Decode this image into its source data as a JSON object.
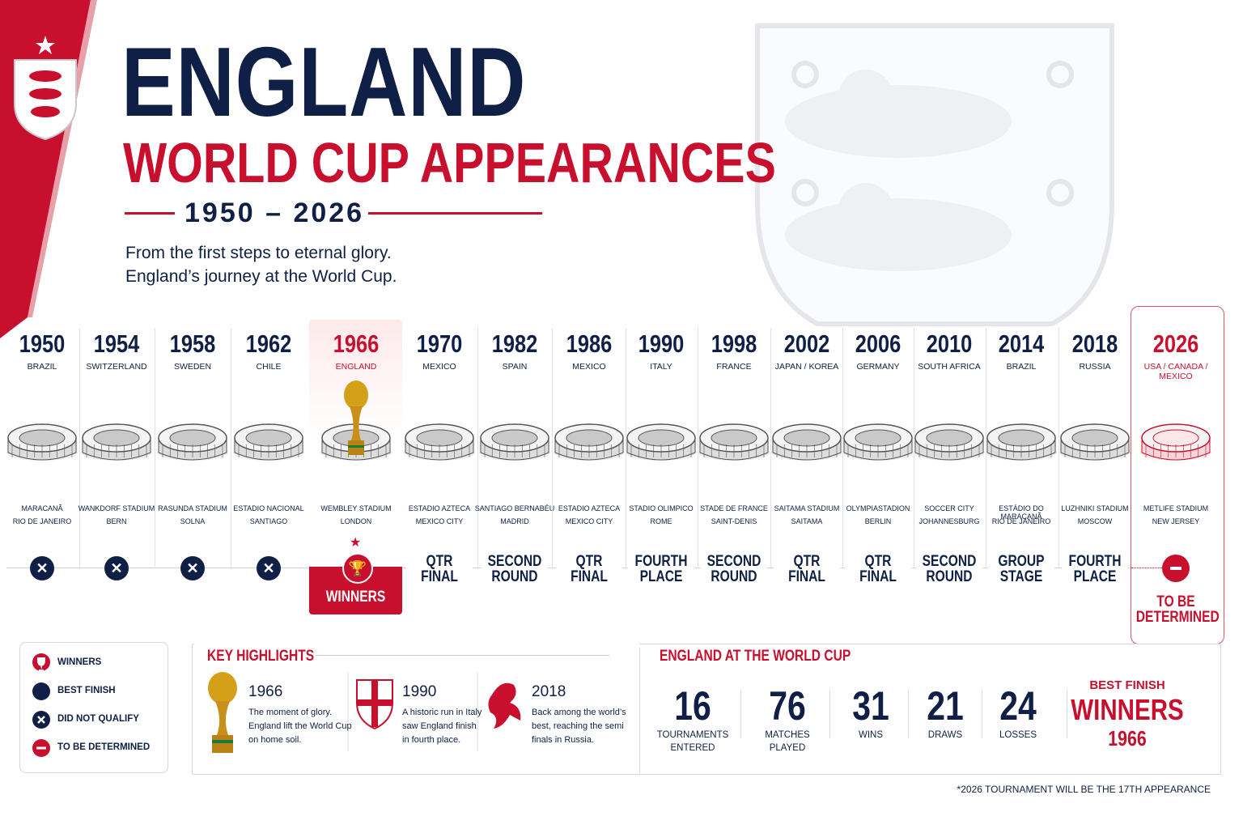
{
  "header": {
    "title": "ENGLAND",
    "subtitle": "WORLD CUP APPEARANCES",
    "years": "1950 – 2026",
    "intro": [
      "From the first steps to eternal glory.",
      "England’s journey at the World Cup."
    ]
  },
  "timeline": [
    {
      "year": "1950",
      "host": "BRAZIL",
      "stadium": "MARACANÃ",
      "city": "RIO DE JANEIRO",
      "status": "did-not-qualify"
    },
    {
      "year": "1954",
      "host": "SWITZERLAND",
      "stadium": "WANKDORF STADIUM",
      "city": "BERN",
      "status": "did-not-qualify"
    },
    {
      "year": "1958",
      "host": "SWEDEN",
      "stadium": "RASUNDA STADIUM",
      "city": "SOLNA",
      "status": "did-not-qualify"
    },
    {
      "year": "1962",
      "host": "CHILE",
      "stadium": "ESTADIO NACIONAL",
      "city": "SANTIAGO",
      "status": "did-not-qualify"
    },
    {
      "year": "1966",
      "host": "ENGLAND",
      "stadium": "WEMBLEY STADIUM",
      "city": "LONDON",
      "status": "winners",
      "result": [
        "WINNERS"
      ]
    },
    {
      "year": "1970",
      "host": "MEXICO",
      "stadium": "ESTADIO AZTECA",
      "city": "MEXICO CITY",
      "status": "best",
      "result": [
        "QTR",
        "FINAL"
      ]
    },
    {
      "year": "1982",
      "host": "SPAIN",
      "stadium": "SANTIAGO BERNABÉU",
      "city": "MADRID",
      "status": "best",
      "result": [
        "SECOND",
        "ROUND"
      ]
    },
    {
      "year": "1986",
      "host": "MEXICO",
      "stadium": "ESTADIO AZTECA",
      "city": "MEXICO CITY",
      "status": "best",
      "result": [
        "QTR",
        "FINAL"
      ]
    },
    {
      "year": "1990",
      "host": "ITALY",
      "stadium": "STADIO OLIMPICO",
      "city": "ROME",
      "status": "best",
      "result": [
        "FOURTH",
        "PLACE"
      ]
    },
    {
      "year": "1998",
      "host": "FRANCE",
      "stadium": "STADE DE FRANCE",
      "city": "SAINT-DENIS",
      "status": "best",
      "result": [
        "SECOND",
        "ROUND"
      ]
    },
    {
      "year": "2002",
      "host": "JAPAN / KOREA",
      "stadium": "SAITAMA STADIUM",
      "city": "SAITAMA",
      "status": "best",
      "result": [
        "QTR",
        "FINAL"
      ]
    },
    {
      "year": "2006",
      "host": "GERMANY",
      "stadium": "OLYMPIASTADION",
      "city": "BERLIN",
      "status": "best",
      "result": [
        "QTR",
        "FINAL"
      ]
    },
    {
      "year": "2010",
      "host": "SOUTH AFRICA",
      "stadium": "SOCCER CITY",
      "city": "JOHANNESBURG",
      "status": "best",
      "result": [
        "SECOND",
        "ROUND"
      ]
    },
    {
      "year": "2014",
      "host": "BRAZIL",
      "stadium": "ESTÁDIO DO MARACANÃ",
      "city": "RIO DE JANEIRO",
      "status": "best",
      "result": [
        "GROUP",
        "STAGE"
      ]
    },
    {
      "year": "2018",
      "host": "RUSSIA",
      "stadium": "LUZHNIKI STADIUM",
      "city": "MOSCOW",
      "status": "best",
      "result": [
        "FOURTH",
        "PLACE"
      ]
    },
    {
      "year": "2026",
      "host": "USA / CANADA / MEXICO",
      "stadium": "METLIFE STADIUM",
      "city": "NEW JERSEY",
      "status": "to-be-determined",
      "result": [
        "TO BE",
        "DETERMINED"
      ]
    }
  ],
  "legend": [
    "WINNERS",
    "BEST FINISH",
    "DID NOT QUALIFY",
    "TO BE DETERMINED"
  ],
  "highlights": {
    "title": "KEY HIGHLIGHTS",
    "items": [
      {
        "year": "1966",
        "text": [
          "The moment of glory.",
          "England lift the World Cup",
          "on home soil."
        ]
      },
      {
        "year": "1990",
        "text": [
          "A historic run in Italy",
          "saw England finish",
          "in fourth place."
        ]
      },
      {
        "year": "2018",
        "text": [
          "Back among the world’s",
          "best, reaching the semi",
          "finals in Russia."
        ]
      }
    ]
  },
  "stats": {
    "title": "ENGLAND AT THE WORLD CUP",
    "items": [
      {
        "value": 16,
        "label": [
          "TOURNAMENTS",
          "ENTERED"
        ]
      },
      {
        "value": 76,
        "label": [
          "MATCHES",
          "PLAYED"
        ]
      },
      {
        "value": 31,
        "label": [
          "WINS"
        ]
      },
      {
        "value": 21,
        "label": [
          "DRAWS"
        ]
      },
      {
        "value": 24,
        "label": [
          "LOSSES"
        ]
      }
    ],
    "best": {
      "label": "BEST FINISH",
      "value": "WINNERS",
      "year": "1966"
    }
  },
  "footnote": "*2026 TOURNAMENT WILL BE THE 17TH APPEARANCE"
}
